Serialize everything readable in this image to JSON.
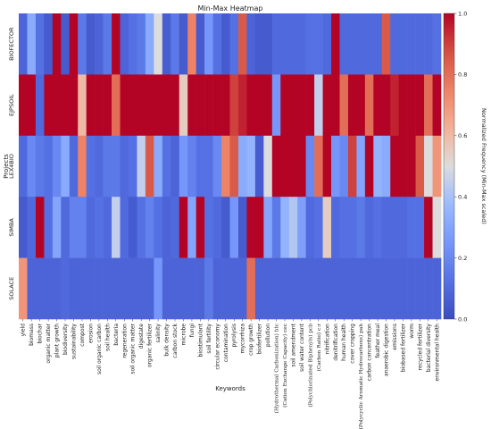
{
  "chart_data": {
    "type": "heatmap",
    "title": "Min-Max Heatmap",
    "xlabel": "Keywords",
    "ylabel": "Projects",
    "colorbar_label": "Normalized Frequency (Min-Max scaled)",
    "colorbar_ticks": [
      "0.0",
      "0.2",
      "0.4",
      "0.6",
      "0.8",
      "1.0"
    ],
    "vmin": 0.0,
    "vmax": 1.0,
    "colormap": "coolwarm",
    "rows": [
      "BIOFECTOR",
      "EJPSOIL",
      "LEX4BIO",
      "SIMBA",
      "SOLACE"
    ],
    "columns": [
      "yield",
      "biomass",
      "biochar",
      "organic matter",
      "plant growth",
      "biodiversity",
      "sustainability",
      "compost",
      "erosion",
      "soil organic carbon",
      "soil health",
      "bacteria",
      "regeneration",
      "soil organic matter",
      "digestate",
      "organic fertilizer",
      "salinity",
      "bulk density",
      "carbon stock",
      "microbe",
      "fungi",
      "biostimulant",
      "soil fertility",
      "circular economy",
      "contamination",
      "pyrolysis",
      "mycorrhiza",
      "crop growth",
      "biofertilizer",
      "pollution",
      "(Hydrothermal Carbonization) htc",
      "(Cation Exchange Capacity) cec",
      "soil amendment",
      "soil water content",
      "(Polychlorinated Biphenyls) pcb",
      "(Carbon Ratio) c:r",
      "nitrification",
      "denitrification",
      "human health",
      "cover cropping",
      "(Polycyclic Aromatic Hydrocarbons) pah",
      "carbon concentration",
      "feather meal",
      "anaerobic digestion",
      "emissions",
      "biobased fertilizer",
      "worm",
      "recycled fertilizer",
      "bacterial diversity",
      "environmental health"
    ],
    "serif_columns": [
      30,
      31,
      34,
      35,
      40
    ],
    "values": [
      [
        0.08,
        0.32,
        0.12,
        0.05,
        1.0,
        0.05,
        1.0,
        0.15,
        0.05,
        0.08,
        0.15,
        1.0,
        0.08,
        0.12,
        0.15,
        0.32,
        0.5,
        0.06,
        0.15,
        0.05,
        0.75,
        0.05,
        0.25,
        0.12,
        0.05,
        0.12,
        0.85,
        0.08,
        0.05,
        0.05,
        0.1,
        0.1,
        0.1,
        0.1,
        0.12,
        0.12,
        0.1,
        1.0,
        0.1,
        0.1,
        0.1,
        0.1,
        0.1,
        0.85,
        0.1,
        0.1,
        0.1,
        0.1,
        0.1,
        0.12
      ],
      [
        1.0,
        1.0,
        0.1,
        1.0,
        1.0,
        1.0,
        1.0,
        0.6,
        1.0,
        1.0,
        1.0,
        0.8,
        1.0,
        1.0,
        1.0,
        1.0,
        1.0,
        1.0,
        1.0,
        0.55,
        1.0,
        1.0,
        1.0,
        1.0,
        1.0,
        0.9,
        0.95,
        1.0,
        1.0,
        1.0,
        0.25,
        1.0,
        1.0,
        1.0,
        1.0,
        0.45,
        1.0,
        1.0,
        0.8,
        1.0,
        1.0,
        0.8,
        1.0,
        1.0,
        0.95,
        1.0,
        1.0,
        1.0,
        0.8,
        1.0
      ],
      [
        0.1,
        0.2,
        0.15,
        0.12,
        0.2,
        0.32,
        0.1,
        0.75,
        0.12,
        0.1,
        0.15,
        0.15,
        0.1,
        0.12,
        0.45,
        0.85,
        0.32,
        0.12,
        0.08,
        0.25,
        0.18,
        0.12,
        0.12,
        0.2,
        0.75,
        0.85,
        0.32,
        0.35,
        0.05,
        0.5,
        1.0,
        1.0,
        1.0,
        1.0,
        0.2,
        0.8,
        1.0,
        0.25,
        0.2,
        0.9,
        0.3,
        1.0,
        0.35,
        0.32,
        1.0,
        1.0,
        1.0,
        0.85,
        0.5,
        0.7
      ],
      [
        0.05,
        0.1,
        1.0,
        0.12,
        0.3,
        0.1,
        0.18,
        0.18,
        0.1,
        0.12,
        0.1,
        0.45,
        0.1,
        0.05,
        0.12,
        0.18,
        0.12,
        0.08,
        0.1,
        1.0,
        0.3,
        1.0,
        0.12,
        0.1,
        0.05,
        0.25,
        0.05,
        1.0,
        1.0,
        0.3,
        0.15,
        0.35,
        0.42,
        0.28,
        0.1,
        0.12,
        0.55,
        0.1,
        0.12,
        0.12,
        0.15,
        0.1,
        0.12,
        0.1,
        0.1,
        0.1,
        0.12,
        0.12,
        1.0,
        0.5
      ],
      [
        0.7,
        0.08,
        0.08,
        0.08,
        0.08,
        0.1,
        0.08,
        0.08,
        0.08,
        0.08,
        0.08,
        0.08,
        0.08,
        0.08,
        0.08,
        0.08,
        0.25,
        0.08,
        0.08,
        0.08,
        0.08,
        0.08,
        0.15,
        0.08,
        0.08,
        0.08,
        0.08,
        0.8,
        0.08,
        0.08,
        0.08,
        0.08,
        0.08,
        0.08,
        0.08,
        0.08,
        0.08,
        0.08,
        0.08,
        0.08,
        0.08,
        0.08,
        0.08,
        0.08,
        0.08,
        0.08,
        0.08,
        0.08,
        0.08,
        0.08
      ]
    ]
  }
}
